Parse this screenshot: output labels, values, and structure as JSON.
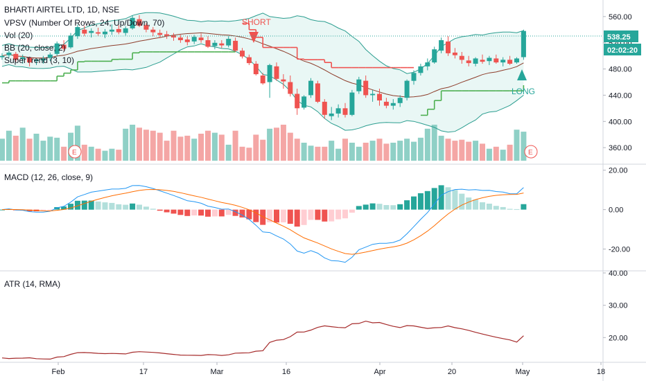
{
  "chart_data": {
    "type": "candlestick",
    "symbol_title": "BHARTI AIRTEL LTD, 1D, NSE",
    "indicator_legends": [
      "VPSV (Number Of Rows, 24, Up/Down, 70)",
      "Vol (20)",
      "BB (20, close, 2)",
      "SuperTrend (3, 10)"
    ],
    "macd_label": "MACD (12, 26, close, 9)",
    "atr_label": "ATR (14, RMA)",
    "x_labels": [
      "Feb",
      "17",
      "Mar",
      "16",
      "Apr",
      "20",
      "May",
      "18"
    ],
    "price_axis": {
      "ticks": [
        "560.00",
        "520.00",
        "480.00",
        "440.00",
        "400.00",
        "360.00"
      ],
      "values": [
        560,
        520,
        480,
        440,
        400,
        360
      ],
      "range": [
        340,
        580
      ]
    },
    "macd_axis": {
      "ticks": [
        "20.00",
        "0.00",
        "-20.00"
      ],
      "values": [
        20,
        0,
        -20
      ],
      "range": [
        -30,
        22
      ]
    },
    "atr_axis": {
      "ticks": [
        "40.00",
        "30.00",
        "20.00"
      ],
      "values": [
        40,
        30,
        20
      ],
      "range": [
        13,
        40
      ]
    },
    "last_price_label": "538.25",
    "countdown_label": "02:02:20",
    "signals": {
      "short": "SHORT",
      "long": "LONG"
    },
    "earnings_marker": "E",
    "candles_ohlc": [
      [
        498,
        504,
        494,
        500
      ],
      [
        501,
        508,
        497,
        505
      ],
      [
        503,
        506,
        491,
        494
      ],
      [
        495,
        502,
        488,
        498
      ],
      [
        497,
        499,
        484,
        490
      ],
      [
        492,
        496,
        486,
        494
      ],
      [
        493,
        500,
        488,
        496
      ],
      [
        497,
        505,
        492,
        502
      ],
      [
        503,
        522,
        500,
        519
      ],
      [
        517,
        524,
        508,
        511
      ],
      [
        513,
        535,
        511,
        531
      ],
      [
        530,
        548,
        526,
        544
      ],
      [
        540,
        546,
        530,
        534
      ],
      [
        535,
        542,
        528,
        538
      ],
      [
        536,
        543,
        530,
        534
      ],
      [
        533,
        541,
        527,
        537
      ],
      [
        537,
        548,
        532,
        540
      ],
      [
        541,
        547,
        533,
        536
      ],
      [
        535,
        545,
        531,
        542
      ],
      [
        542,
        562,
        540,
        558
      ],
      [
        556,
        562,
        544,
        546
      ],
      [
        547,
        550,
        536,
        540
      ],
      [
        540,
        544,
        530,
        536
      ],
      [
        535,
        540,
        527,
        532
      ],
      [
        533,
        538,
        526,
        530
      ],
      [
        531,
        535,
        523,
        528
      ],
      [
        528,
        532,
        520,
        524
      ],
      [
        525,
        530,
        516,
        521
      ],
      [
        522,
        532,
        518,
        529
      ],
      [
        528,
        534,
        520,
        524
      ],
      [
        524,
        530,
        512,
        514
      ],
      [
        515,
        524,
        510,
        520
      ],
      [
        519,
        524,
        512,
        516
      ],
      [
        516,
        530,
        513,
        526
      ],
      [
        523,
        528,
        506,
        508
      ],
      [
        508,
        512,
        496,
        499
      ],
      [
        498,
        502,
        486,
        489
      ],
      [
        488,
        492,
        470,
        472
      ],
      [
        470,
        474,
        456,
        458
      ],
      [
        460,
        488,
        436,
        486
      ],
      [
        484,
        490,
        462,
        465
      ],
      [
        464,
        472,
        450,
        461
      ],
      [
        460,
        470,
        438,
        442
      ],
      [
        442,
        450,
        410,
        420
      ],
      [
        421,
        440,
        418,
        438
      ],
      [
        440,
        466,
        436,
        462
      ],
      [
        458,
        462,
        428,
        430
      ],
      [
        430,
        434,
        404,
        410
      ],
      [
        408,
        422,
        402,
        412
      ],
      [
        412,
        426,
        406,
        420
      ],
      [
        420,
        428,
        406,
        410
      ],
      [
        410,
        448,
        408,
        444
      ],
      [
        446,
        468,
        442,
        464
      ],
      [
        462,
        470,
        436,
        440
      ],
      [
        440,
        448,
        430,
        442
      ],
      [
        442,
        450,
        424,
        432
      ],
      [
        430,
        436,
        420,
        424
      ],
      [
        424,
        434,
        418,
        428
      ],
      [
        428,
        440,
        422,
        436
      ],
      [
        436,
        464,
        432,
        462
      ],
      [
        462,
        478,
        456,
        474
      ],
      [
        474,
        488,
        470,
        484
      ],
      [
        484,
        496,
        478,
        490
      ],
      [
        490,
        514,
        488,
        510
      ],
      [
        508,
        528,
        504,
        524
      ],
      [
        522,
        530,
        500,
        504
      ],
      [
        505,
        512,
        496,
        501
      ],
      [
        500,
        506,
        488,
        494
      ],
      [
        493,
        500,
        484,
        489
      ],
      [
        488,
        498,
        484,
        496
      ],
      [
        494,
        502,
        488,
        491
      ],
      [
        492,
        500,
        486,
        497
      ],
      [
        496,
        502,
        488,
        490
      ],
      [
        490,
        498,
        484,
        494
      ],
      [
        494,
        500,
        486,
        488
      ],
      [
        490,
        498,
        488,
        496
      ],
      [
        498,
        540,
        494,
        538
      ]
    ],
    "volumes": [
      22,
      30,
      25,
      33,
      22,
      27,
      20,
      24,
      23,
      14,
      28,
      35,
      16,
      14,
      12,
      10,
      12,
      11,
      32,
      36,
      33,
      31,
      30,
      28,
      20,
      30,
      24,
      25,
      22,
      27,
      30,
      28,
      26,
      16,
      30,
      14,
      13,
      26,
      21,
      32,
      33,
      36,
      28,
      22,
      18,
      15,
      14,
      14,
      20,
      12,
      22,
      18,
      14,
      18,
      20,
      22,
      17,
      18,
      20,
      22,
      19,
      23,
      32,
      36,
      25,
      22,
      20,
      21,
      19,
      20,
      17,
      12,
      14,
      11,
      16,
      31,
      29
    ]
  }
}
